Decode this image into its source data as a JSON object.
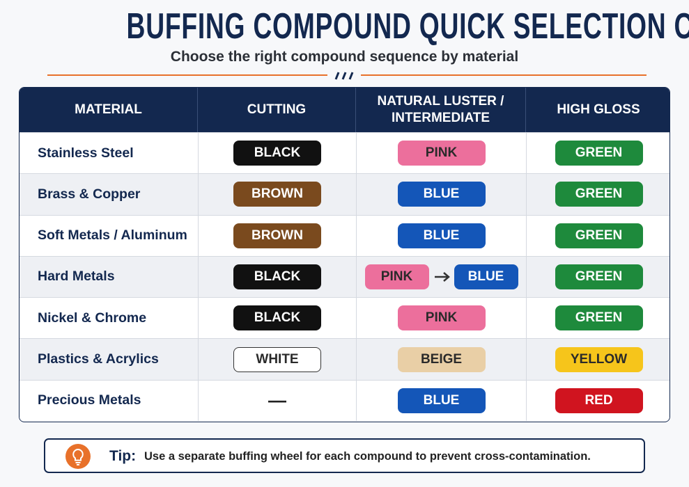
{
  "header": {
    "title": "BUFFING COMPOUND QUICK SELECTION CHART",
    "subtitle": "Choose the right compound sequence by material"
  },
  "table": {
    "columns": [
      "MATERIAL",
      "CUTTING",
      "NATURAL LUSTER / INTERMEDIATE",
      "HIGH GLOSS"
    ],
    "rows": [
      {
        "material": "Stainless Steel",
        "cells": [
          [
            {
              "label": "BLACK",
              "color": "#111111"
            }
          ],
          [
            {
              "label": "PINK",
              "color": "#ec6f9c"
            }
          ],
          [
            {
              "label": "GREEN",
              "color": "#1e8a3c"
            }
          ]
        ]
      },
      {
        "material": "Brass & Copper",
        "cells": [
          [
            {
              "label": "BROWN",
              "color": "#7a4a1e"
            }
          ],
          [
            {
              "label": "BLUE",
              "color": "#1456b8"
            }
          ],
          [
            {
              "label": "GREEN",
              "color": "#1e8a3c"
            }
          ]
        ]
      },
      {
        "material": "Soft Metals / Aluminum",
        "cells": [
          [
            {
              "label": "BROWN",
              "color": "#7a4a1e"
            }
          ],
          [
            {
              "label": "BLUE",
              "color": "#1456b8"
            }
          ],
          [
            {
              "label": "GREEN",
              "color": "#1e8a3c"
            }
          ]
        ]
      },
      {
        "material": "Hard Metals",
        "cells": [
          [
            {
              "label": "BLACK",
              "color": "#111111"
            }
          ],
          [
            {
              "label": "PINK",
              "color": "#ec6f9c"
            },
            {
              "label": "BLUE",
              "color": "#1456b8"
            }
          ],
          [
            {
              "label": "GREEN",
              "color": "#1e8a3c"
            }
          ]
        ]
      },
      {
        "material": "Nickel & Chrome",
        "cells": [
          [
            {
              "label": "BLACK",
              "color": "#111111"
            }
          ],
          [
            {
              "label": "PINK",
              "color": "#ec6f9c"
            }
          ],
          [
            {
              "label": "GREEN",
              "color": "#1e8a3c"
            }
          ]
        ]
      },
      {
        "material": "Plastics & Acrylics",
        "cells": [
          [
            {
              "label": "WHITE",
              "color": "#ffffff"
            }
          ],
          [
            {
              "label": "BEIGE",
              "color": "#e9cfa6"
            }
          ],
          [
            {
              "label": "YELLOW",
              "color": "#f6c51b"
            }
          ]
        ]
      },
      {
        "material": "Precious Metals",
        "cells": [
          [
            {
              "label": "—"
            }
          ],
          [
            {
              "label": "BLUE",
              "color": "#1456b8"
            }
          ],
          [
            {
              "label": "RED",
              "color": "#d0141f"
            }
          ]
        ]
      }
    ]
  },
  "tip": {
    "label": "Tip:",
    "text": "Use a separate buffing wheel for each compound to prevent cross-contamination."
  }
}
